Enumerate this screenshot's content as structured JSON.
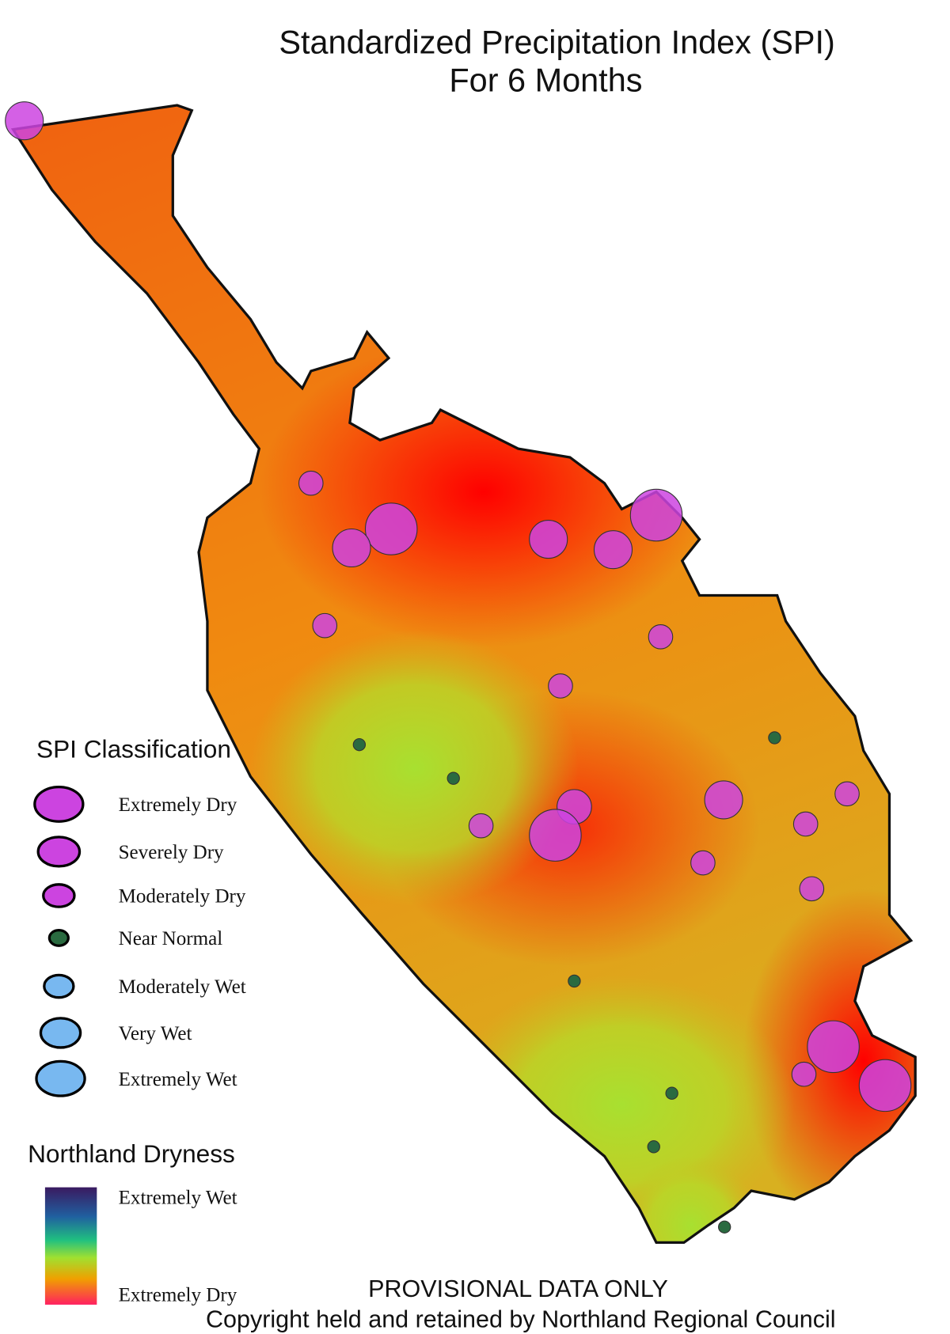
{
  "title": [
    "Standardized Precipitation Index (SPI)",
    "For 6 Months"
  ],
  "legend": {
    "title": "SPI Classification",
    "items": [
      "Extremely Dry",
      "Severely Dry",
      "Moderately Dry",
      "Near Normal",
      "Moderately Wet",
      "Very Wet",
      "Extremely Wet"
    ]
  },
  "dryness": {
    "title": "Northland Dryness",
    "top": "Extremely Wet",
    "bottom": "Extremely Dry"
  },
  "footer": {
    "notice": "PROVISIONAL DATA ONLY",
    "copyright": "Copyright held and retained by Northland Regional Council"
  }
}
